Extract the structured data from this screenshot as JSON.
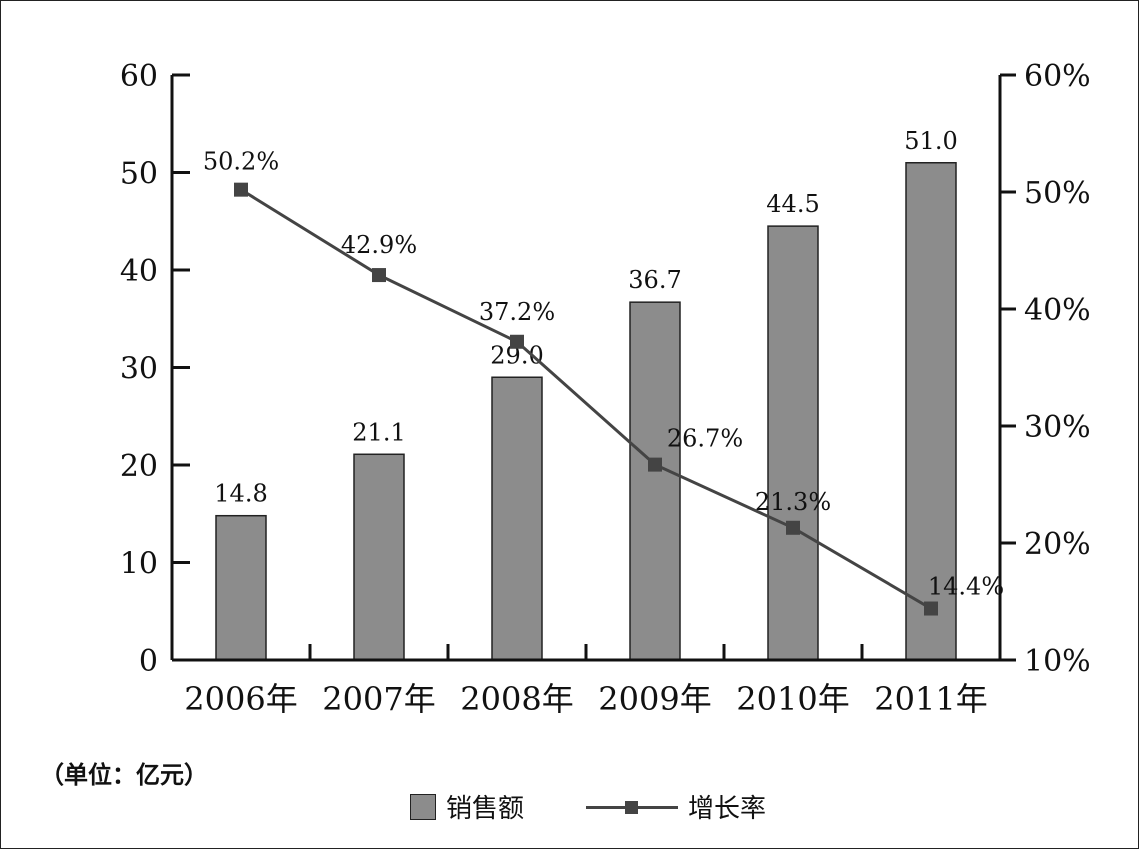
{
  "unit_note": "（单位：亿元）",
  "colors": {
    "bar_fill": "#8c8c8c",
    "line": "#444444",
    "axis": "#111111"
  },
  "chart_data": {
    "type": "bar",
    "categories": [
      "2006年",
      "2007年",
      "2008年",
      "2009年",
      "2010年",
      "2011年"
    ],
    "series": [
      {
        "name": "销售额",
        "type": "bar",
        "axis": "left",
        "values": [
          14.8,
          21.1,
          29.0,
          36.7,
          44.5,
          51.0
        ],
        "labels": [
          "14.8",
          "21.1",
          "29.0",
          "36.7",
          "44.5",
          "51.0"
        ]
      },
      {
        "name": "增长率",
        "type": "line",
        "axis": "right",
        "values": [
          50.2,
          42.9,
          37.2,
          26.7,
          21.3,
          14.4
        ],
        "labels": [
          "50.2%",
          "42.9%",
          "37.2%",
          "26.7%",
          "21.3%",
          "14.4%"
        ]
      }
    ],
    "left_axis": {
      "min": 0,
      "max": 60,
      "ticks": [
        "0",
        "10",
        "20",
        "30",
        "40",
        "50",
        "60"
      ]
    },
    "right_axis": {
      "min": 10,
      "max": 60,
      "ticks": [
        "10%",
        "20%",
        "30%",
        "40%",
        "50%",
        "60%"
      ]
    },
    "grid": false,
    "legend": "bottom-center"
  }
}
